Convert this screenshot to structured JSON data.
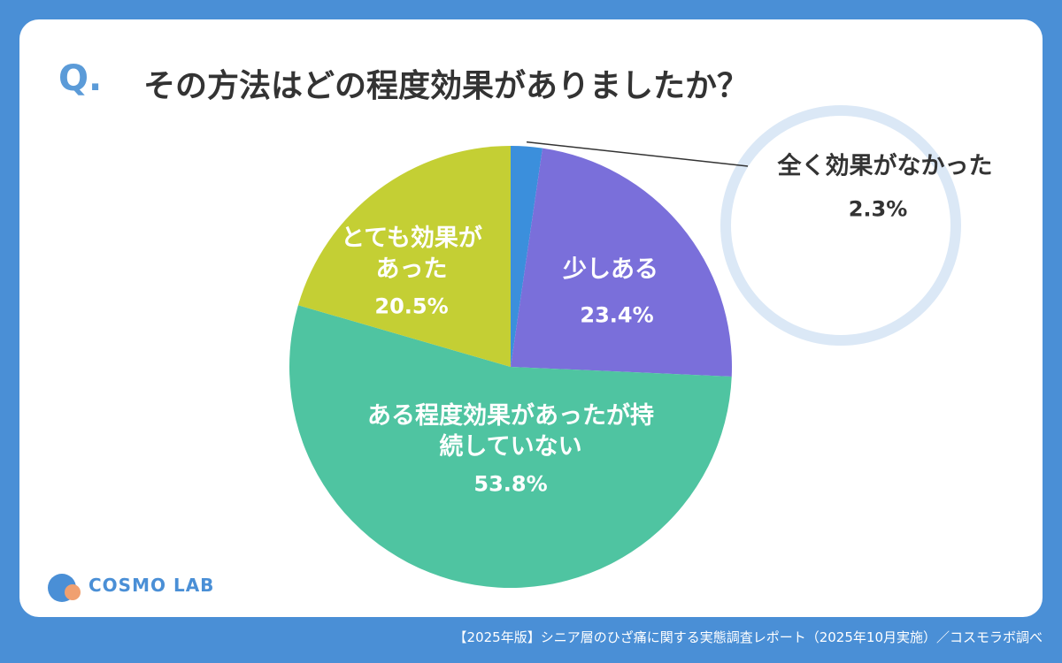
{
  "chart_data": {
    "type": "pie",
    "title_prefix": "Q.",
    "title": "その方法はどの程度効果がありましたか？",
    "categories": [
      "全く効果がなかった",
      "少しある",
      "ある程度効果があったが持続していない",
      "とても効果があった"
    ],
    "values": [
      2.3,
      23.4,
      53.8,
      20.5
    ],
    "value_labels": [
      "2.3%",
      "23.4%",
      "53.8%",
      "20.5%"
    ],
    "colors": [
      "#3b8fdc",
      "#7a6fda",
      "#4fc4a1",
      "#c4cf34"
    ],
    "logo": "COSMO LAB",
    "source": "【2025年版】シニア層のひざ痛に関する実態調査レポート（2025年10月実施）／コスモラボ調べ"
  }
}
